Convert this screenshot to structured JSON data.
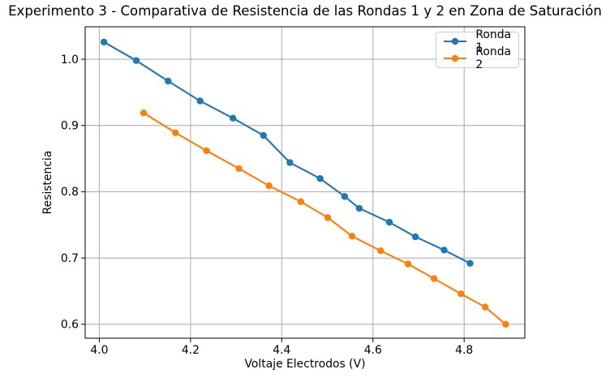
{
  "chart_data": {
    "type": "line",
    "title": "Experimento 3 - Comparativa de Resistencia de las Rondas 1 y 2 en Zona de Saturación",
    "xlabel": "Voltaje Electrodos (V)",
    "ylabel": "Resistencia",
    "grid": true,
    "legend_position": "upper right",
    "xlim": [
      3.969,
      4.933
    ],
    "ylim": [
      0.579,
      1.049
    ],
    "x_ticks": [
      4.0,
      4.2,
      4.4,
      4.6,
      4.8
    ],
    "y_ticks": [
      0.6,
      0.7,
      0.8,
      0.9,
      1.0
    ],
    "series": [
      {
        "name": "Ronda 1",
        "color": "#1f77b4",
        "marker": "circle",
        "x": [
          4.01,
          4.081,
          4.151,
          4.221,
          4.293,
          4.36,
          4.418,
          4.484,
          4.538,
          4.57,
          4.636,
          4.693,
          4.756,
          4.813
        ],
        "y": [
          1.026,
          0.998,
          0.967,
          0.937,
          0.911,
          0.885,
          0.844,
          0.82,
          0.793,
          0.775,
          0.754,
          0.732,
          0.712,
          0.692
        ]
      },
      {
        "name": "Ronda 2",
        "color": "#ff7f0e",
        "marker": "circle",
        "x": [
          4.097,
          4.167,
          4.235,
          4.306,
          4.372,
          4.442,
          4.501,
          4.554,
          4.617,
          4.677,
          4.734,
          4.793,
          4.846,
          4.891
        ],
        "y": [
          0.919,
          0.889,
          0.862,
          0.835,
          0.809,
          0.785,
          0.761,
          0.733,
          0.711,
          0.691,
          0.669,
          0.646,
          0.626,
          0.6
        ]
      }
    ]
  }
}
